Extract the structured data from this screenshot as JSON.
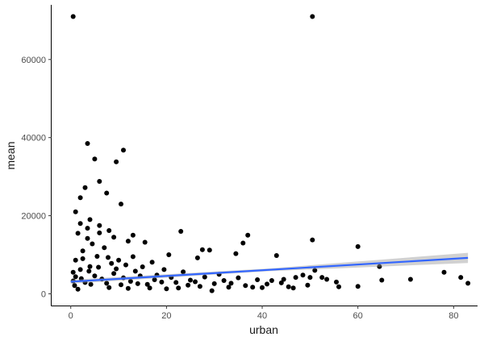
{
  "chart_data": {
    "type": "scatter",
    "xlabel": "urban",
    "ylabel": "mean",
    "xlim": [
      -4,
      85
    ],
    "ylim": [
      -3000,
      74000
    ],
    "x_ticks": [
      0,
      20,
      40,
      60,
      80
    ],
    "y_ticks": [
      0,
      20000,
      40000,
      60000
    ],
    "grid": false,
    "legend": "none",
    "colors": {
      "points": "#000000",
      "trend": "#3366ff",
      "ribbon": "#999999",
      "axis": "#000000"
    },
    "series": [
      {
        "points": [
          [
            0.5,
            71000
          ],
          [
            50.5,
            71000
          ],
          [
            3.5,
            38500
          ],
          [
            11,
            36800
          ],
          [
            5,
            34500
          ],
          [
            9.5,
            33800
          ],
          [
            6,
            28800
          ],
          [
            3,
            27200
          ],
          [
            7.5,
            25800
          ],
          [
            2,
            24600
          ],
          [
            10.5,
            23000
          ],
          [
            1,
            21000
          ],
          [
            4,
            19000
          ],
          [
            2,
            18000
          ],
          [
            6,
            17500
          ],
          [
            3.5,
            16800
          ],
          [
            8,
            16200
          ],
          [
            1.5,
            15500
          ],
          [
            13,
            15000
          ],
          [
            9,
            14500
          ],
          [
            23,
            16000
          ],
          [
            37,
            15000
          ],
          [
            12,
            13500
          ],
          [
            15.5,
            13200
          ],
          [
            27.5,
            11300
          ],
          [
            29,
            11200
          ],
          [
            43,
            9800
          ],
          [
            20.5,
            10000
          ],
          [
            36,
            13000
          ],
          [
            34.5,
            10300
          ],
          [
            50.5,
            13800
          ],
          [
            60,
            12100
          ],
          [
            26.5,
            9200
          ],
          [
            64.5,
            7000
          ],
          [
            47,
            4200
          ],
          [
            48.5,
            4800
          ],
          [
            50,
            4200
          ],
          [
            51,
            6000
          ],
          [
            52.5,
            4200
          ],
          [
            55.5,
            3000
          ],
          [
            53.5,
            3700
          ],
          [
            56,
            1800
          ],
          [
            60,
            1900
          ],
          [
            65,
            3500
          ],
          [
            71,
            3700
          ],
          [
            78,
            5500
          ],
          [
            81.5,
            4200
          ],
          [
            83,
            2700
          ],
          [
            44,
            2800
          ],
          [
            45.5,
            1800
          ],
          [
            46.5,
            1500
          ],
          [
            49.5,
            2200
          ],
          [
            39,
            3600
          ],
          [
            41,
            2500
          ],
          [
            38,
            1700
          ],
          [
            31,
            5000
          ],
          [
            29.5,
            800
          ],
          [
            32,
            3400
          ],
          [
            33.5,
            2700
          ],
          [
            35,
            4100
          ],
          [
            28,
            4300
          ],
          [
            26,
            3100
          ],
          [
            24.5,
            2200
          ],
          [
            22.5,
            1500
          ],
          [
            21,
            4200
          ],
          [
            19,
            3000
          ],
          [
            17.5,
            3600
          ],
          [
            16,
            2400
          ],
          [
            14.5,
            4600
          ],
          [
            13.5,
            5800
          ],
          [
            12.5,
            3200
          ],
          [
            11.5,
            7400
          ],
          [
            10,
            8600
          ],
          [
            0.5,
            5500
          ],
          [
            1,
            8600
          ],
          [
            2.5,
            11000
          ],
          [
            4.5,
            12800
          ],
          [
            5.5,
            9600
          ],
          [
            7,
            11800
          ],
          [
            8.5,
            7800
          ],
          [
            9,
            5200
          ],
          [
            6.5,
            3800
          ],
          [
            3,
            2900
          ],
          [
            1.5,
            1200
          ],
          [
            0.5,
            3300
          ],
          [
            2,
            6200
          ],
          [
            4,
            7000
          ],
          [
            5,
            4600
          ],
          [
            7.5,
            2700
          ],
          [
            8,
            1600
          ],
          [
            10.5,
            2300
          ],
          [
            12,
            1400
          ],
          [
            14,
            2600
          ],
          [
            16.5,
            1500
          ],
          [
            18,
            4800
          ],
          [
            20,
            1300
          ],
          [
            22,
            2900
          ],
          [
            25,
            3500
          ],
          [
            27,
            1900
          ],
          [
            30,
            2600
          ],
          [
            33,
            1700
          ],
          [
            36.5,
            2100
          ],
          [
            40,
            1600
          ],
          [
            42,
            3400
          ],
          [
            44.5,
            3700
          ],
          [
            3.5,
            14200
          ],
          [
            6,
            15600
          ],
          [
            2.5,
            9000
          ],
          [
            9.5,
            6400
          ],
          [
            11,
            4100
          ],
          [
            13,
            9500
          ],
          [
            15,
            6900
          ],
          [
            17,
            8100
          ],
          [
            19.5,
            6200
          ],
          [
            23.5,
            5600
          ],
          [
            1,
            4400
          ],
          [
            3.8,
            5800
          ],
          [
            5.8,
            6800
          ],
          [
            7.8,
            9300
          ],
          [
            0.8,
            2100
          ],
          [
            2.2,
            3900
          ],
          [
            4.2,
            2400
          ]
        ]
      }
    ],
    "trend": {
      "x0": 0,
      "y0": 3100,
      "x1": 83,
      "y1": 9200,
      "band0": 500,
      "bandMid": 350,
      "band1": 1300
    }
  }
}
